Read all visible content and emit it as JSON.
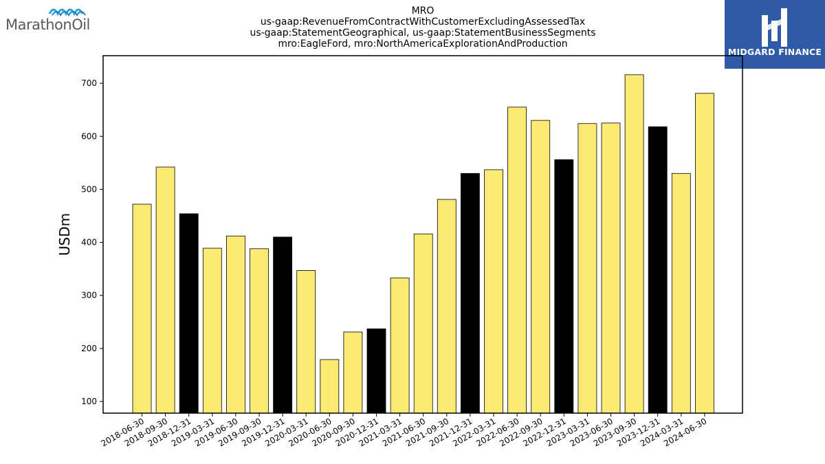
{
  "header": {
    "title_lines": [
      "MRO",
      "us-gaap:RevenueFromContractWithCustomerExcludingAssessedTax",
      "us-gaap:StatementGeographical, us-gaap:StatementBusinessSegments",
      "mro:EagleFord, mro:NorthAmericaExplorationAndProduction"
    ]
  },
  "logos": {
    "left_text": "MarathonOil",
    "right_text": "MIDGARD FINANCE",
    "right_bg": "#2f5aa8",
    "left_mark_color": "#29a3dc"
  },
  "chart_data": {
    "type": "bar",
    "ylabel": "USDm",
    "xlabel": "",
    "ylim": [
      78,
      752
    ],
    "yticks": [
      100,
      200,
      300,
      400,
      500,
      600,
      700
    ],
    "grid": false,
    "colors": {
      "quarter": "#fdea75",
      "year_end": "#000000",
      "edge": "#000000"
    },
    "categories": [
      "2018-06-30",
      "2018-09-30",
      "2018-12-31",
      "2019-03-31",
      "2019-06-30",
      "2019-09-30",
      "2019-12-31",
      "2020-03-31",
      "2020-06-30",
      "2020-09-30",
      "2020-12-31",
      "2021-03-31",
      "2021-06-30",
      "2021-09-30",
      "2021-12-31",
      "2022-03-31",
      "2022-06-30",
      "2022-09-30",
      "2022-12-31",
      "2023-03-31",
      "2023-06-30",
      "2023-09-30",
      "2023-12-31",
      "2024-03-31",
      "2024-06-30"
    ],
    "values": [
      472,
      542,
      454,
      389,
      412,
      388,
      410,
      347,
      179,
      231,
      237,
      333,
      416,
      481,
      530,
      537,
      655,
      630,
      556,
      624,
      625,
      716,
      618,
      530,
      681
    ],
    "highlight": [
      false,
      false,
      true,
      false,
      false,
      false,
      true,
      false,
      false,
      false,
      true,
      false,
      false,
      false,
      true,
      false,
      false,
      false,
      true,
      false,
      false,
      false,
      true,
      false,
      false
    ]
  }
}
